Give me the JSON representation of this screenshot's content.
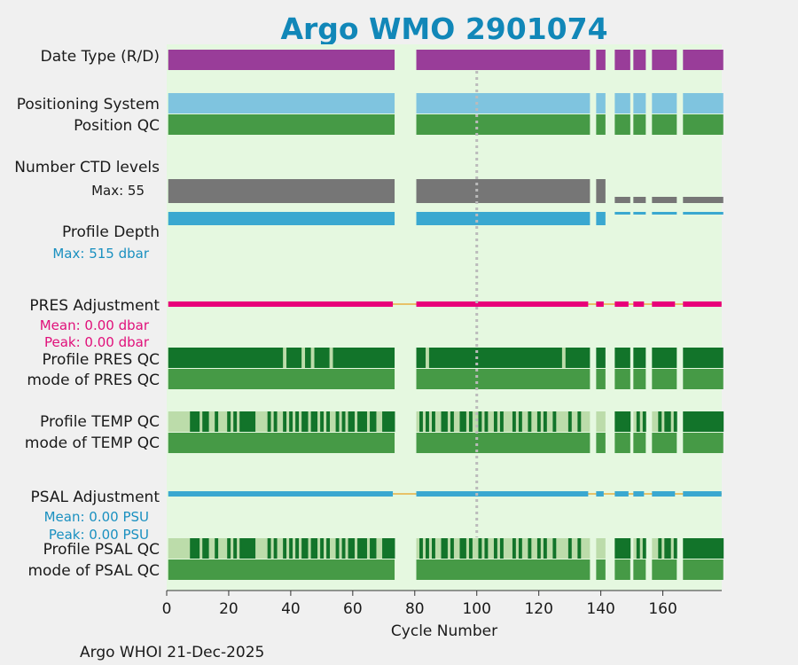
{
  "chart_data": {
    "type": "bar",
    "title": "Argo WMO 2901074",
    "xlabel": "Cycle Number",
    "xlim": [
      0,
      179
    ],
    "xticks": [
      "0",
      "20",
      "40",
      "60",
      "80",
      "100",
      "120",
      "140",
      "160"
    ],
    "footer": "Argo WHOI 21-Dec-2025",
    "cycle_segments": [
      [
        1,
        73
      ],
      [
        81,
        136
      ],
      [
        139,
        141
      ],
      [
        145,
        149
      ],
      [
        151,
        154
      ],
      [
        157,
        164
      ],
      [
        167,
        179
      ]
    ],
    "marker_cycle": 100,
    "rows": {
      "date_type": {
        "label": "Date Type (R/D)"
      },
      "positioning_system": {
        "label": "Positioning System"
      },
      "position_qc": {
        "label": "Position QC"
      },
      "ctd_levels": {
        "label": "Number CTD levels",
        "max_label": "Max: 55"
      },
      "profile_depth": {
        "label": "Profile Depth",
        "max_label": "Max:  515 dbar"
      },
      "pres_adjustment": {
        "label": "PRES Adjustment",
        "mean_label": "Mean: 0.00 dbar",
        "peak_label": "Peak: 0.00 dbar"
      },
      "profile_pres_qc": {
        "label": "Profile PRES QC"
      },
      "mode_pres_qc": {
        "label": "mode of PRES QC"
      },
      "profile_temp_qc": {
        "label": "Profile TEMP QC"
      },
      "mode_temp_qc": {
        "label": "mode of TEMP QC"
      },
      "psal_adjustment": {
        "label": "PSAL Adjustment",
        "mean_label": "Mean: 0.00 PSU",
        "peak_label": "Peak: 0.00 PSU"
      },
      "profile_psal_qc": {
        "label": "Profile PSAL QC"
      },
      "mode_psal_qc": {
        "label": "mode of PSAL QC"
      }
    },
    "pres_qc_light_cycles": [
      38,
      44,
      47,
      53,
      84,
      128
    ],
    "temp_qc_dark_cycles": [
      8,
      9,
      10,
      12,
      13,
      16,
      20,
      22,
      24,
      25,
      26,
      27,
      28,
      33,
      35,
      38,
      40,
      42,
      44,
      45,
      47,
      48,
      50,
      52,
      55,
      57,
      59,
      60,
      62,
      63,
      64,
      66,
      67,
      70,
      71,
      72,
      73,
      82,
      84,
      86,
      89,
      90,
      92,
      95,
      96,
      98,
      101,
      103,
      106,
      108,
      112,
      114,
      117,
      120,
      122,
      125,
      130,
      133,
      145,
      146,
      147,
      148,
      149,
      152,
      154,
      159,
      161,
      162,
      164,
      167,
      168,
      169,
      170,
      171,
      172,
      173,
      174,
      175,
      176,
      177,
      178,
      179
    ],
    "psal_qc_dark_cycles": [
      8,
      9,
      10,
      12,
      13,
      16,
      20,
      22,
      24,
      25,
      26,
      27,
      28,
      33,
      35,
      38,
      40,
      42,
      44,
      45,
      47,
      48,
      50,
      52,
      55,
      57,
      59,
      60,
      62,
      63,
      64,
      66,
      67,
      70,
      71,
      72,
      73,
      82,
      84,
      86,
      89,
      90,
      92,
      95,
      96,
      98,
      101,
      103,
      106,
      108,
      112,
      114,
      117,
      120,
      122,
      125,
      130,
      133,
      145,
      146,
      147,
      148,
      149,
      152,
      154,
      159,
      161,
      162,
      164,
      167,
      168,
      169,
      170,
      171,
      172,
      173,
      174,
      175,
      176,
      177,
      178,
      179
    ],
    "colors": {
      "background": "#e5f8e0",
      "date_type": "#993d99",
      "positioning": "#7fc4df",
      "qc_good": "#469a46",
      "qc_dark": "#12742a",
      "qc_light": "#bcdcaa",
      "ctd": "#767676",
      "depth": "#3aa8d0",
      "pres_adj": "#e8007a",
      "psal_adj": "#3aa8d0",
      "adj_baseline": "#e8b040",
      "marker": "#bbbbbb",
      "title": "#1187b8",
      "depth_text": "#1a90c0",
      "pres_text": "#e0107a"
    }
  }
}
